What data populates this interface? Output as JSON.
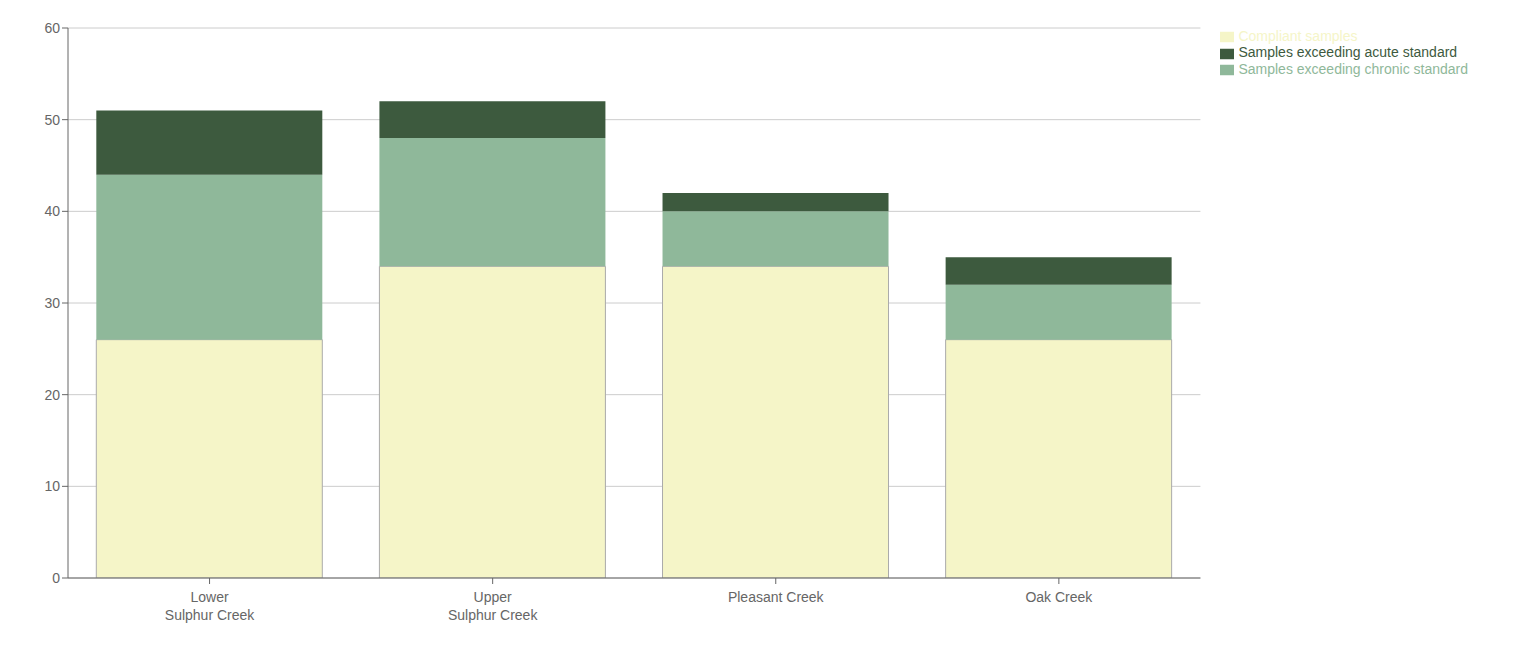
{
  "chart_data": {
    "type": "bar",
    "stacked": true,
    "categories": [
      "Lower\nSulphur Creek",
      "Upper\nSulphur Creek",
      "Pleasant Creek",
      "Oak Creek"
    ],
    "series": [
      {
        "name": "Compliant samples",
        "color": "#f5f5c8",
        "values": [
          26,
          34,
          34,
          26
        ]
      },
      {
        "name": "Samples exceeding chronic standard",
        "color": "#8fb89a",
        "values": [
          18,
          14,
          6,
          6
        ]
      },
      {
        "name": "Samples exceeding acute standard",
        "color": "#3d5a3e",
        "values": [
          7,
          4,
          2,
          3
        ]
      }
    ],
    "ylim": [
      0,
      60
    ],
    "yticks": [
      0,
      10,
      20,
      30,
      40,
      50,
      60
    ],
    "grid": true,
    "legend": "upper right"
  }
}
